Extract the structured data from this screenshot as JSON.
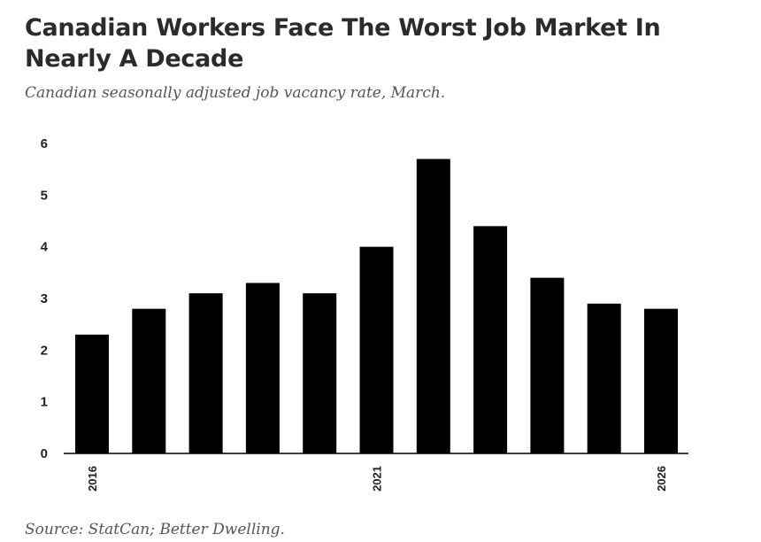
{
  "title": "Canadian Workers Face The Worst Job Market In Nearly A Decade",
  "subtitle": "Canadian seasonally adjusted job vacancy rate, March.",
  "source": "Source: StatCan; Better Dwelling.",
  "colors": {
    "bar": "#000000",
    "axis": "#000000",
    "title": "#2b2b2b",
    "subtitle": "#555555"
  },
  "chart_data": {
    "type": "bar",
    "categories": [
      "2016",
      "2017",
      "2018",
      "2019",
      "2020",
      "2021",
      "2022",
      "2023",
      "2024",
      "2025",
      "2026"
    ],
    "values": [
      2.3,
      2.8,
      3.1,
      3.3,
      3.1,
      4.0,
      5.7,
      4.4,
      3.4,
      2.9,
      2.8
    ],
    "tick_labels_shown": [
      "2016",
      "2021",
      "2026"
    ],
    "yticks": [
      0,
      1,
      2,
      3,
      4,
      5,
      6
    ],
    "ylim": [
      0,
      6
    ],
    "grid": false,
    "legend": "none"
  }
}
